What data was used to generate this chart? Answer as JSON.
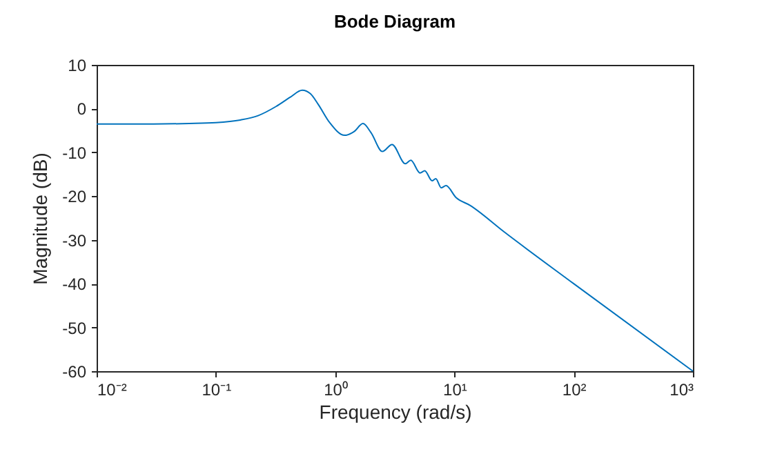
{
  "chart_data": {
    "type": "line",
    "title": "Bode Diagram",
    "xlabel": "Frequency (rad/s)",
    "ylabel": "Magnitude (dB)",
    "log": "x",
    "grid": false,
    "marker": "none",
    "line_style": "solid",
    "x": [
      0.01,
      0.03,
      0.06,
      0.1,
      0.16,
      0.226,
      0.32,
      0.42,
      0.53,
      0.62,
      0.72,
      0.9,
      1.2,
      1.45,
      1.71,
      2.0,
      2.49,
      3.0,
      3.88,
      4.31,
      5.15,
      5.64,
      6.5,
      6.98,
      7.76,
      8.5,
      10.3,
      13.5,
      26.2,
      100,
      1000
    ],
    "series": [
      {
        "color": "#0072bd",
        "values": [
          -3.5,
          -3.5,
          -3.4,
          -3.2,
          -2.6,
          -1.6,
          0.5,
          2.6,
          4.2,
          3.4,
          1.0,
          -3.2,
          -6.1,
          -5.2,
          -3.4,
          -5.5,
          -9.8,
          -8.2,
          -12.6,
          -11.8,
          -14.7,
          -14.2,
          -16.5,
          -16.0,
          -18.1,
          -17.6,
          -20.3,
          -22.1,
          -28.2,
          -40,
          -60
        ]
      }
    ],
    "xlim": [
      0.01,
      1000
    ],
    "xticks": [
      {
        "value": 0.01,
        "label": "10⁻²"
      },
      {
        "value": 0.1,
        "label": "10⁻¹"
      },
      {
        "value": 1,
        "label": "10⁰"
      },
      {
        "value": 10,
        "label": "10¹"
      },
      {
        "value": 100,
        "label": "10²"
      },
      {
        "value": 1000,
        "label": "10³"
      }
    ],
    "ylim": [
      -60,
      10
    ],
    "yticks": [
      -60,
      -50,
      -40,
      -30,
      -20,
      -10,
      0,
      10
    ]
  }
}
